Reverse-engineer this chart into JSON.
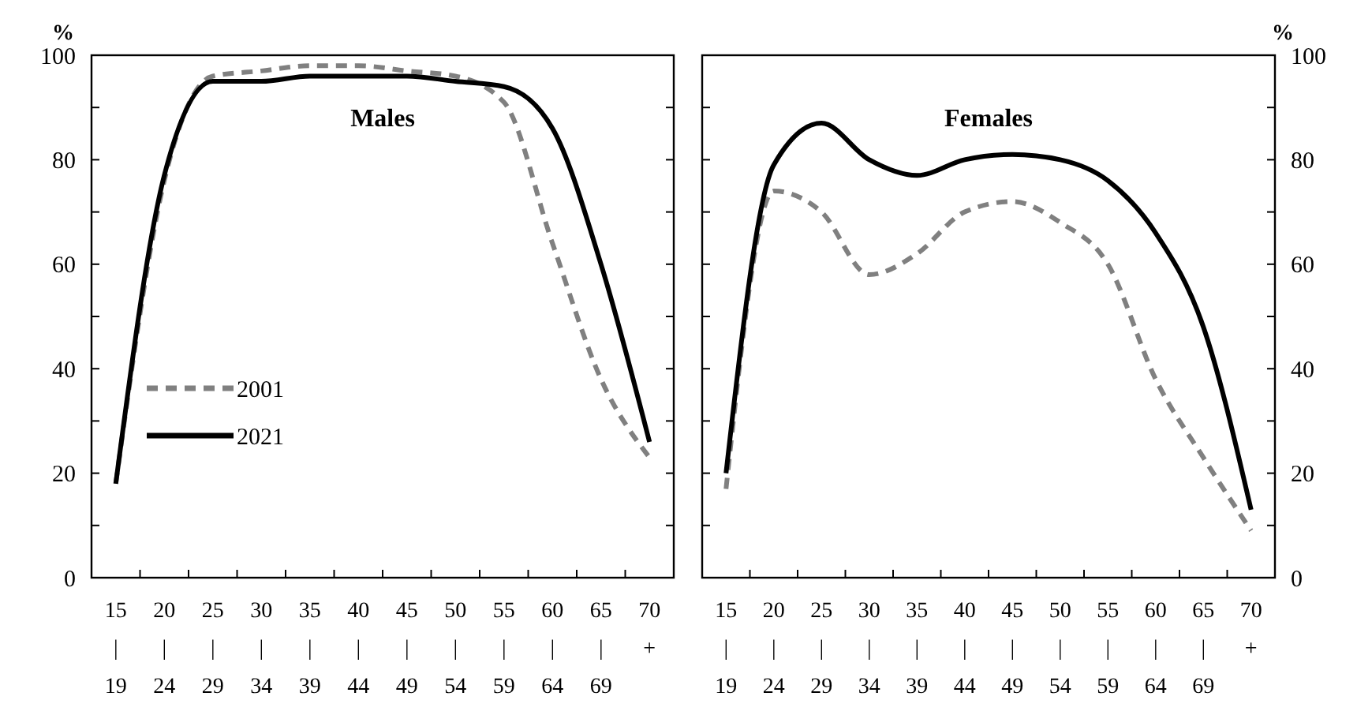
{
  "chart_data": [
    {
      "type": "line",
      "title": "Males",
      "ylabel": "%",
      "categories": [
        "15\n|\n19",
        "20\n|\n24",
        "25\n|\n29",
        "30\n|\n34",
        "35\n|\n39",
        "40\n|\n44",
        "45\n|\n49",
        "50\n|\n54",
        "55\n|\n59",
        "60\n|\n64",
        "65\n|\n69",
        "70\n+"
      ],
      "ylim": [
        0,
        100
      ],
      "yticks": [
        0,
        {
          "value": 10,
          "label": null
        },
        20,
        {
          "value": 30,
          "label": null
        },
        40,
        {
          "value": 50,
          "label": null
        },
        60,
        {
          "value": 70,
          "label": null
        },
        80,
        {
          "value": 90,
          "label": null
        },
        100
      ],
      "legend": "left",
      "series": [
        {
          "name": "2001",
          "color": "#808080",
          "line_style": "dashed",
          "values": [
            18,
            76,
            96,
            97,
            98,
            98,
            97,
            96,
            91,
            64,
            38,
            23
          ]
        },
        {
          "name": "2021",
          "color": "#000000",
          "line_style": "solid",
          "values": [
            18,
            77,
            95,
            95,
            96,
            96,
            96,
            95,
            94,
            86,
            60,
            26
          ]
        }
      ]
    },
    {
      "type": "line",
      "title": "Females",
      "y2label": "%",
      "categories": [
        "15\n|\n19",
        "20\n|\n24",
        "25\n|\n29",
        "30\n|\n34",
        "35\n|\n39",
        "40\n|\n44",
        "45\n|\n49",
        "50\n|\n54",
        "55\n|\n59",
        "60\n|\n64",
        "65\n|\n69",
        "70\n+"
      ],
      "y2lim": [
        0,
        100
      ],
      "y2ticks": [
        0,
        {
          "value": 10,
          "label": null
        },
        20,
        {
          "value": 30,
          "label": null
        },
        40,
        {
          "value": 50,
          "label": null
        },
        60,
        {
          "value": 70,
          "label": null
        },
        80,
        {
          "value": 90,
          "label": null
        },
        100
      ],
      "series": [
        {
          "color": "#808080",
          "line_style": "dashed",
          "axis": "y2",
          "values": [
            17,
            74,
            70,
            58,
            62,
            70,
            72,
            68,
            60,
            38,
            23,
            9
          ]
        },
        {
          "color": "#000000",
          "line_style": "solid",
          "axis": "y2",
          "values": [
            20,
            79,
            87,
            80,
            77,
            80,
            81,
            80,
            76,
            66,
            48,
            13
          ]
        }
      ]
    }
  ]
}
